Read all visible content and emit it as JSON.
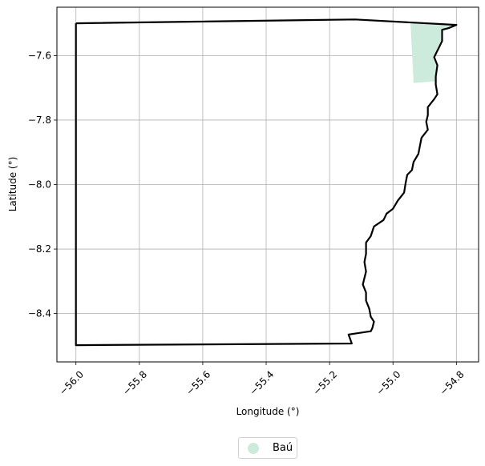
{
  "chart_data": {
    "type": "map",
    "xlabel": "Longitude (°)",
    "ylabel": "Latitude (°)",
    "xlim": [
      -56.06,
      -54.73
    ],
    "ylim": [
      -8.55,
      -7.45
    ],
    "xticks": [
      -56.0,
      -55.8,
      -55.6,
      -55.4,
      -55.2,
      -55.0,
      -54.8
    ],
    "xtick_labels": [
      "−56.0",
      "−55.8",
      "−55.6",
      "−55.4",
      "−55.2",
      "−55.0",
      "−54.8"
    ],
    "yticks": [
      -7.6,
      -7.8,
      -8.0,
      -8.2,
      -8.4
    ],
    "ytick_labels": [
      "−7.6",
      "−7.8",
      "−8.0",
      "−8.2",
      "−8.4"
    ],
    "grid": true,
    "boundary_color": "#000000",
    "boundary": [
      [
        -56.0,
        -7.5
      ],
      [
        -55.12,
        -7.488
      ],
      [
        -54.8,
        -7.505
      ],
      [
        -54.825,
        -7.515
      ],
      [
        -54.845,
        -7.52
      ],
      [
        -54.845,
        -7.555
      ],
      [
        -54.855,
        -7.575
      ],
      [
        -54.87,
        -7.605
      ],
      [
        -54.86,
        -7.63
      ],
      [
        -54.865,
        -7.665
      ],
      [
        -54.865,
        -7.69
      ],
      [
        -54.86,
        -7.72
      ],
      [
        -54.87,
        -7.735
      ],
      [
        -54.89,
        -7.76
      ],
      [
        -54.89,
        -7.785
      ],
      [
        -54.895,
        -7.805
      ],
      [
        -54.89,
        -7.83
      ],
      [
        -54.91,
        -7.855
      ],
      [
        -54.915,
        -7.88
      ],
      [
        -54.92,
        -7.905
      ],
      [
        -54.935,
        -7.93
      ],
      [
        -54.94,
        -7.955
      ],
      [
        -54.955,
        -7.97
      ],
      [
        -54.96,
        -7.995
      ],
      [
        -54.965,
        -8.025
      ],
      [
        -54.985,
        -8.05
      ],
      [
        -55.0,
        -8.075
      ],
      [
        -55.02,
        -8.09
      ],
      [
        -55.03,
        -8.11
      ],
      [
        -55.06,
        -8.13
      ],
      [
        -55.07,
        -8.16
      ],
      [
        -55.085,
        -8.18
      ],
      [
        -55.085,
        -8.215
      ],
      [
        -55.09,
        -8.24
      ],
      [
        -55.085,
        -8.27
      ],
      [
        -55.095,
        -8.31
      ],
      [
        -55.085,
        -8.335
      ],
      [
        -55.085,
        -8.36
      ],
      [
        -55.075,
        -8.385
      ],
      [
        -55.07,
        -8.41
      ],
      [
        -55.06,
        -8.425
      ],
      [
        -55.065,
        -8.445
      ],
      [
        -55.07,
        -8.455
      ],
      [
        -55.14,
        -8.465
      ],
      [
        -55.13,
        -8.493
      ],
      [
        -56.0,
        -8.498
      ],
      [
        -56.0,
        -7.5
      ]
    ],
    "regions": [
      {
        "name": "Baú",
        "color": "#cdebdc",
        "polygon": [
          [
            -54.945,
            -7.498
          ],
          [
            -54.8,
            -7.505
          ],
          [
            -54.825,
            -7.515
          ],
          [
            -54.845,
            -7.52
          ],
          [
            -54.845,
            -7.555
          ],
          [
            -54.855,
            -7.575
          ],
          [
            -54.87,
            -7.605
          ],
          [
            -54.86,
            -7.63
          ],
          [
            -54.865,
            -7.665
          ],
          [
            -54.865,
            -7.69
          ],
          [
            -54.87,
            -7.68
          ],
          [
            -54.935,
            -7.685
          ]
        ]
      }
    ]
  },
  "legend": {
    "label": "Baú",
    "color": "#cdebdc"
  }
}
